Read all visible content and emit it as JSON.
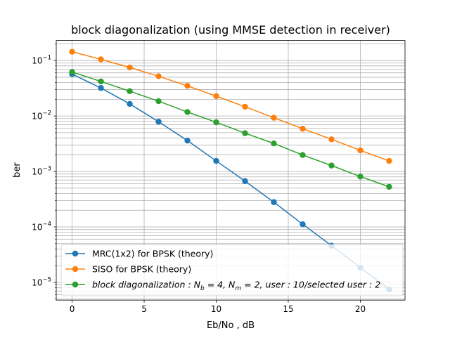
{
  "chart_data": {
    "type": "line",
    "title": "block diagonalization (using MMSE detection in receiver)",
    "xlabel": "Eb/No , dB",
    "ylabel": "ber",
    "x_scale": "linear",
    "y_scale": "log",
    "xlim": [
      -1.1,
      23.1
    ],
    "ylim": [
      4.8e-06,
      0.23
    ],
    "x_ticks": [
      0,
      5,
      10,
      15,
      20
    ],
    "x_tick_labels": [
      "0",
      "5",
      "10",
      "15",
      "20"
    ],
    "y_ticks": [
      1e-05,
      0.0001,
      0.001,
      0.01,
      0.1
    ],
    "y_tick_labels": [
      {
        "base": "10",
        "exp": "−5"
      },
      {
        "base": "10",
        "exp": "−4"
      },
      {
        "base": "10",
        "exp": "−3"
      },
      {
        "base": "10",
        "exp": "−2"
      },
      {
        "base": "10",
        "exp": "−1"
      }
    ],
    "grid": true,
    "grid_minor": true,
    "legend_position": "lower-right",
    "series": [
      {
        "name": "MRC(1x2) for BPSK (theory)",
        "color": "#1f77b4",
        "x": [
          0,
          2,
          4,
          6,
          8,
          10,
          12,
          14,
          16,
          18,
          20,
          22
        ],
        "values": [
          0.057,
          0.032,
          0.0165,
          0.0079,
          0.0036,
          0.00155,
          0.00067,
          0.00028,
          0.000112,
          4.6e-05,
          1.85e-05,
          7.5e-06
        ]
      },
      {
        "name": "SISO for BPSK (theory)",
        "color": "#ff7f0e",
        "x": [
          0,
          2,
          4,
          6,
          8,
          10,
          12,
          14,
          16,
          18,
          20,
          22
        ],
        "values": [
          0.144,
          0.105,
          0.075,
          0.052,
          0.035,
          0.0228,
          0.0147,
          0.0093,
          0.0059,
          0.0038,
          0.0024,
          0.00155
        ]
      },
      {
        "name": "block diagonalization : N_b = 4, N_m = 2, user : 10/selected user : 2",
        "color": "#2ca02c",
        "x": [
          0,
          2,
          4,
          6,
          8,
          10,
          12,
          14,
          16,
          18,
          20,
          22
        ],
        "values": [
          0.062,
          0.042,
          0.028,
          0.0185,
          0.0118,
          0.0077,
          0.0049,
          0.0032,
          0.00198,
          0.00128,
          0.00081,
          0.00053
        ]
      }
    ],
    "legend_display": [
      {
        "plain": "MRC(1x2) for BPSK (theory)"
      },
      {
        "plain": "SISO for BPSK (theory)"
      },
      {
        "math": [
          {
            "t": "block diagonalization : N"
          },
          {
            "sub": "b"
          },
          {
            "t": " = 4, N"
          },
          {
            "sub": "m"
          },
          {
            "t": " = 2, user : 10/selected user : 2"
          }
        ]
      }
    ]
  }
}
